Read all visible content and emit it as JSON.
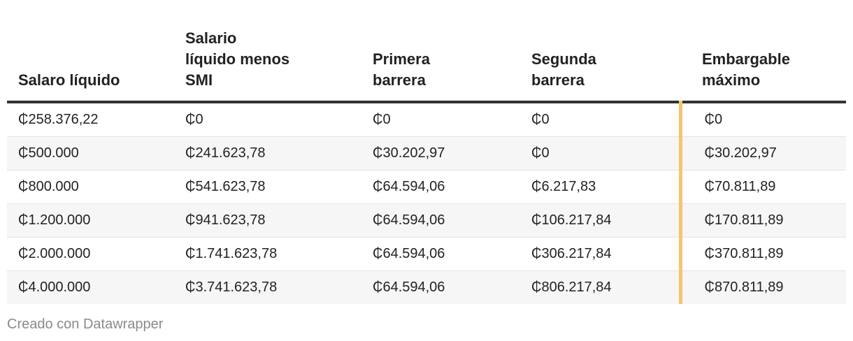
{
  "table": {
    "header": [
      "Salaro líquido",
      "Salario líquido menos SMI",
      "Primera barrera",
      "Segunda barrera",
      "Embargable máximo"
    ],
    "rows": [
      [
        "₵258.376,22",
        "₵0",
        "₵0",
        "₵0",
        "₵0"
      ],
      [
        "₵500.000",
        "₵241.623,78",
        "₵30.202,97",
        "₵0",
        "₵30.202,97"
      ],
      [
        "₵800.000",
        "₵541.623,78",
        "₵64.594,06",
        "₵6.217,83",
        "₵70.811,89"
      ],
      [
        "₵1.200.000",
        "₵941.623,78",
        "₵64.594,06",
        "₵106.217,84",
        "₵170.811,89"
      ],
      [
        "₵2.000.000",
        "₵1.741.623,78",
        "₵64.594,06",
        "₵306.217,84",
        "₵370.811,89"
      ],
      [
        "₵4.000.000",
        "₵3.741.623,78",
        "₵64.594,06",
        "₵806.217,84",
        "₵870.811,89"
      ]
    ]
  },
  "footer": "Creado con Datawrapper"
}
